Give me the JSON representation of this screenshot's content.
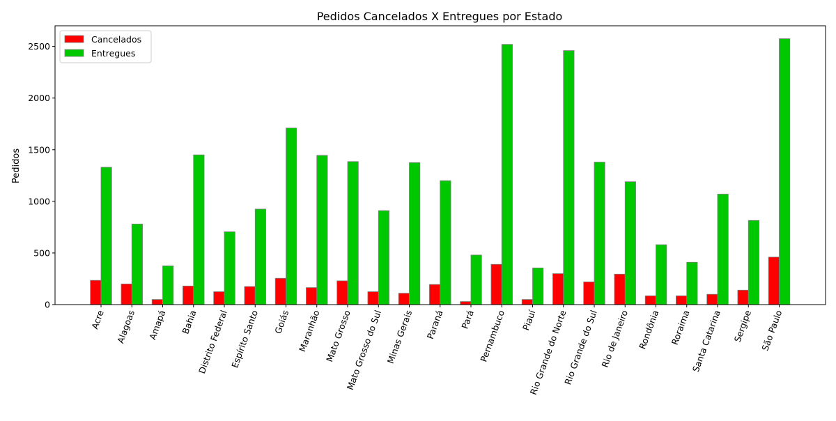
{
  "chart_data": {
    "type": "bar",
    "title": "Pedidos Cancelados X Entregues por Estado",
    "xlabel": "",
    "ylabel": "Pedidos",
    "ylim": [
      0,
      2700
    ],
    "yticks": [
      0,
      500,
      1000,
      1500,
      2000,
      2500
    ],
    "grid": false,
    "legend_position": "top-left",
    "categories": [
      "Acre",
      "Alagoas",
      "Amapá",
      "Bahia",
      "Distrito Federal",
      "Espírito Santo",
      "Goiás",
      "Maranhão",
      "Mato Grosso",
      "Mato Grosso do Sul",
      "Minas Gerais",
      "Paraná",
      "Pará",
      "Pernambuco",
      "Piauí",
      "Rio Grande do Norte",
      "Rio Grande do Sul",
      "Rio de Janeiro",
      "Rondônia",
      "Roraima",
      "Santa Catarina",
      "Sergipe",
      "São Paulo"
    ],
    "series": [
      {
        "name": "Cancelados",
        "color": "#ff0000",
        "values": [
          235,
          200,
          50,
          180,
          125,
          175,
          255,
          165,
          230,
          125,
          110,
          195,
          30,
          390,
          50,
          300,
          220,
          295,
          85,
          85,
          100,
          140,
          460
        ]
      },
      {
        "name": "Entregues",
        "color": "#00c800",
        "values": [
          1330,
          780,
          375,
          1450,
          705,
          925,
          1710,
          1445,
          1385,
          910,
          1375,
          1200,
          480,
          2520,
          355,
          2460,
          1380,
          1190,
          580,
          410,
          1070,
          815,
          2575
        ]
      }
    ]
  }
}
